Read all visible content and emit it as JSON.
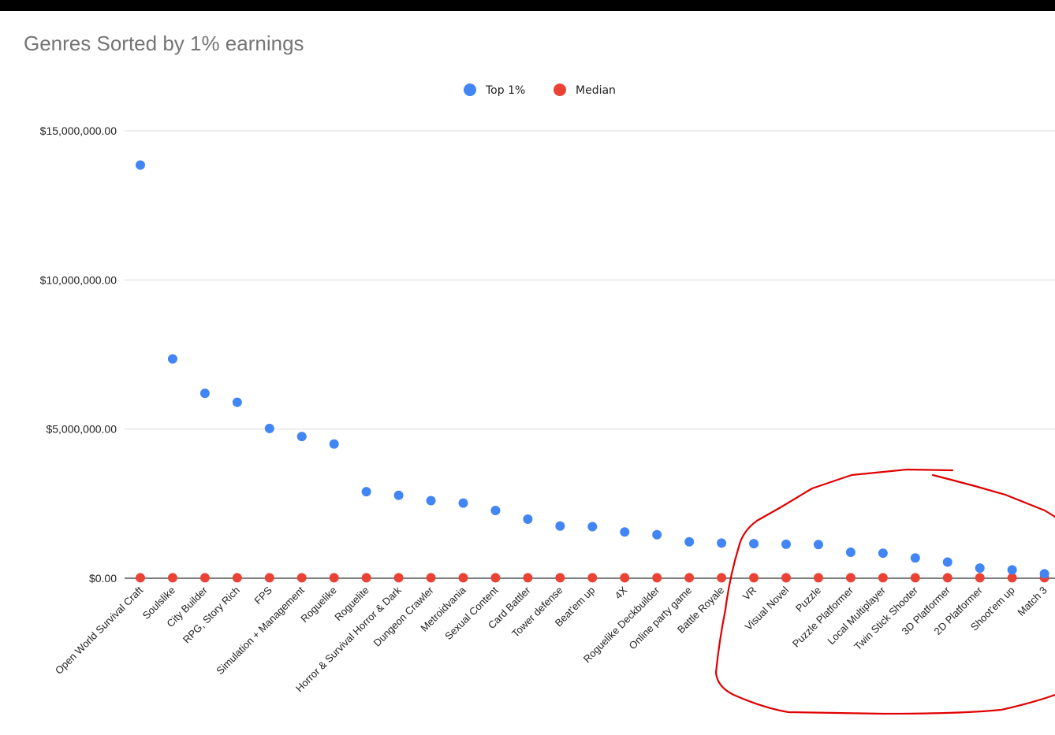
{
  "chart_data": {
    "type": "scatter",
    "title": "Genres Sorted by 1% earnings",
    "xlabel": "",
    "ylabel": "",
    "ylim": [
      0,
      15000000
    ],
    "y_ticks": [
      {
        "value": 0,
        "label": "$0.00"
      },
      {
        "value": 5000000,
        "label": "$5,000,000.00"
      },
      {
        "value": 10000000,
        "label": "$10,000,000.00"
      },
      {
        "value": 15000000,
        "label": "$15,000,000.00"
      }
    ],
    "grid": true,
    "legend_position": "top",
    "categories": [
      "Open World Survival Craft",
      "Soulslike",
      "City Builder",
      "RPG, Story Rich",
      "FPS",
      "Simulation + Management",
      "Roguelike",
      "Roguelite",
      "Horror & Survival Horror & Dark",
      "Dungeon Crawler",
      "Metroidvania",
      "Sexual Content",
      "Card Battler",
      "Tower defense",
      "Beat'em up",
      "4X",
      "Roguelike Deckbuilder",
      "Online party game",
      "Battle Royale",
      "VR",
      "Visual Novel",
      "Puzzle",
      "Puzzle Platformer",
      "Local Multiplayer",
      "Twin Stick Shooter",
      "3D Platformer",
      "2D Platformer",
      "Shoot'em up",
      "Match 3"
    ],
    "series": [
      {
        "name": "Top 1%",
        "color": "#4285f4",
        "values": [
          13850000,
          7350000,
          6200000,
          5900000,
          5020000,
          4750000,
          4500000,
          2900000,
          2780000,
          2600000,
          2520000,
          2270000,
          1980000,
          1750000,
          1730000,
          1550000,
          1460000,
          1220000,
          1180000,
          1160000,
          1140000,
          1130000,
          870000,
          840000,
          680000,
          540000,
          340000,
          280000,
          150000
        ]
      },
      {
        "name": "Median",
        "color": "#ea4335",
        "values": [
          15000,
          15000,
          15000,
          15000,
          15000,
          15000,
          15000,
          15000,
          15000,
          15000,
          15000,
          15000,
          15000,
          15000,
          15000,
          15000,
          15000,
          15000,
          15000,
          15000,
          15000,
          15000,
          15000,
          15000,
          15000,
          15000,
          15000,
          15000,
          15000
        ]
      }
    ],
    "annotation": {
      "shape": "freehand-circle",
      "color": "#e00000"
    }
  }
}
